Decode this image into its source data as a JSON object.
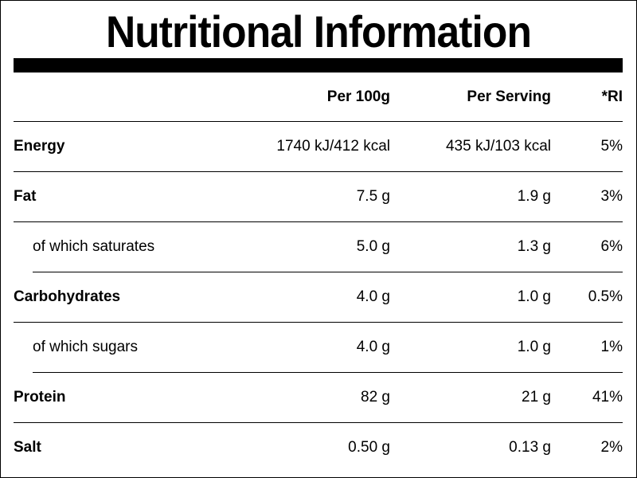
{
  "title": "Nutritional Information",
  "headers": {
    "label": "",
    "per_100g": "Per 100g",
    "per_serving": "Per Serving",
    "ri": "*RI"
  },
  "rows": [
    {
      "label": "Energy",
      "per_100g": "1740 kJ/412 kcal",
      "per_serving": "435 kJ/103 kcal",
      "ri": "5%"
    },
    {
      "label": "Fat",
      "per_100g": "7.5 g",
      "per_serving": "1.9 g",
      "ri": "3%"
    },
    {
      "label": "of which saturates",
      "per_100g": "5.0 g",
      "per_serving": "1.3 g",
      "ri": "6%"
    },
    {
      "label": "Carbohydrates",
      "per_100g": "4.0 g",
      "per_serving": "1.0 g",
      "ri": "0.5%"
    },
    {
      "label": "of which sugars",
      "per_100g": "4.0 g",
      "per_serving": "1.0 g",
      "ri": "1%"
    },
    {
      "label": "Protein",
      "per_100g": "82 g",
      "per_serving": "21 g",
      "ri": "41%"
    },
    {
      "label": "Salt",
      "per_100g": "0.50 g",
      "per_serving": "0.13 g",
      "ri": "2%"
    }
  ]
}
